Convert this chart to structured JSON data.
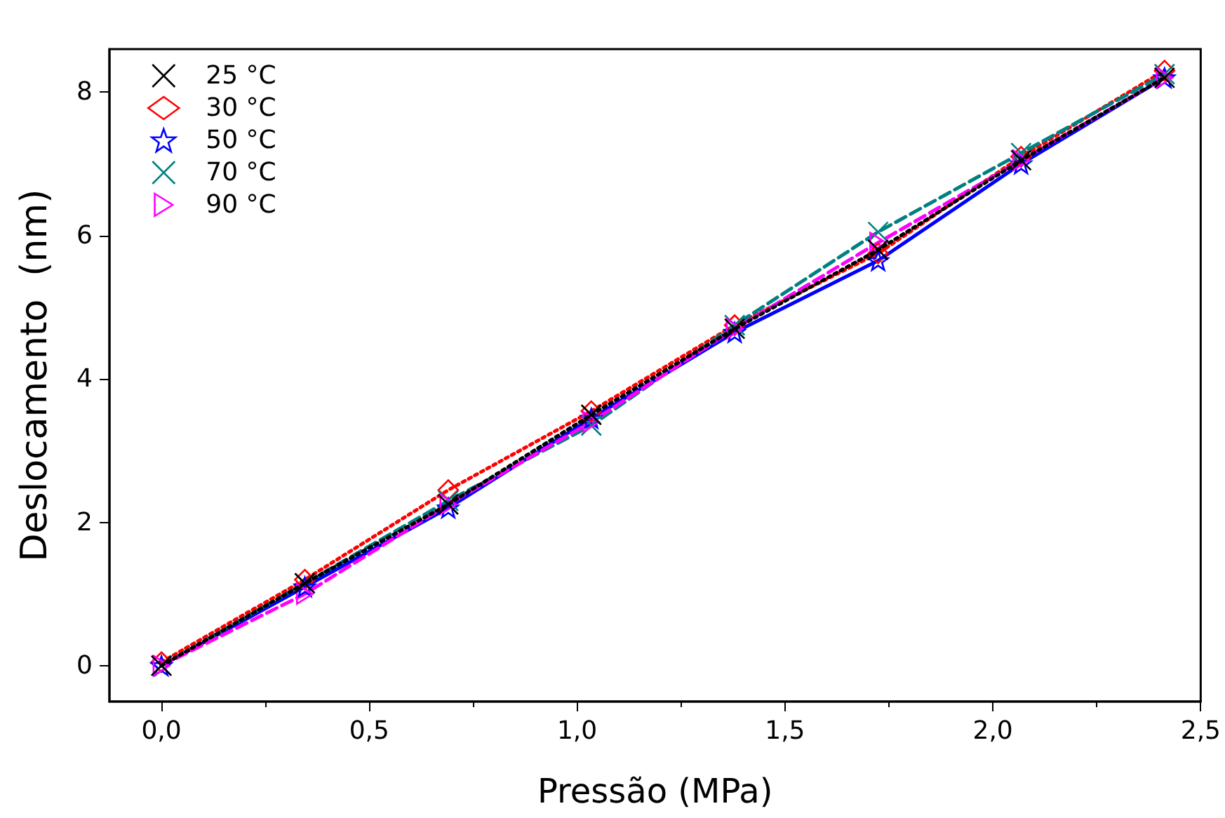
{
  "chart_data": {
    "type": "line",
    "xlabel": "Pressão (MPa)",
    "ylabel": "Deslocamento  (nm)",
    "x": [
      0,
      0.345,
      0.69,
      1.034,
      1.379,
      1.724,
      2.068,
      2.413
    ],
    "series": [
      {
        "name": "25 °C",
        "color": "#000000",
        "marker": "cross",
        "line_style": "dotted",
        "values": [
          0,
          1.15,
          2.25,
          3.5,
          4.7,
          5.8,
          7.05,
          8.2
        ]
      },
      {
        "name": "30 °C",
        "color": "#ff0000",
        "marker": "diamond",
        "line_style": "dotted",
        "values": [
          0.05,
          1.2,
          2.45,
          3.55,
          4.75,
          5.75,
          7.1,
          8.3
        ]
      },
      {
        "name": "50 °C",
        "color": "#0000ff",
        "marker": "star",
        "line_style": "solid",
        "values": [
          0,
          1.1,
          2.2,
          3.45,
          4.65,
          5.65,
          7.0,
          8.2
        ]
      },
      {
        "name": "70 °C",
        "color": "#008080",
        "marker": "cross",
        "line_style": "dashed",
        "values": [
          0,
          1.15,
          2.3,
          3.35,
          4.75,
          6.05,
          7.15,
          8.25
        ]
      },
      {
        "name": "90 °C",
        "color": "#ff00ff",
        "marker": "triangle",
        "line_style": "dashed",
        "values": [
          0,
          1.0,
          2.25,
          3.4,
          4.7,
          5.9,
          7.05,
          8.2
        ]
      }
    ],
    "xlim": [
      -0.125,
      2.5
    ],
    "xticks": [
      {
        "value": 0,
        "label": "0,0"
      },
      {
        "value": 0.5,
        "label": "0,5"
      },
      {
        "value": 1,
        "label": "1,0"
      },
      {
        "value": 1.5,
        "label": "1,5"
      },
      {
        "value": 2,
        "label": "2,0"
      },
      {
        "value": 2.5,
        "label": "2,5"
      }
    ],
    "ylim": [
      -0.5,
      8.6
    ],
    "yticks": [
      0,
      2,
      4,
      6,
      8
    ],
    "grid": false,
    "legend": "top left"
  }
}
